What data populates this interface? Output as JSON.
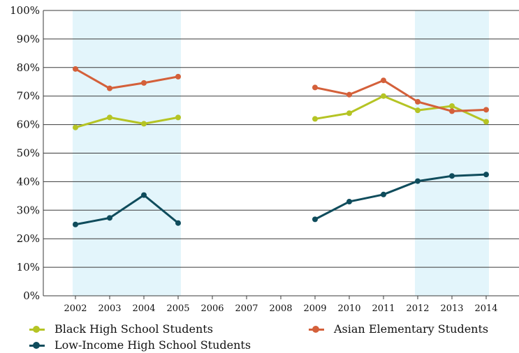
{
  "chart_data": {
    "type": "line",
    "x": [
      "2002",
      "2003",
      "2004",
      "2005",
      "2006",
      "2007",
      "2008",
      "2009",
      "2010",
      "2011",
      "2012",
      "2013",
      "2014"
    ],
    "yticks": [
      "0%",
      "10%",
      "20%",
      "30%",
      "40%",
      "50%",
      "60%",
      "70%",
      "80%",
      "90%",
      "100%"
    ],
    "ylim": [
      0,
      100
    ],
    "grid": true,
    "legend_position": "bottom",
    "shaded_ranges": [
      [
        "2002",
        "2005"
      ],
      [
        "2012",
        "2014"
      ]
    ],
    "shade_color": "#e3f5fb",
    "series": [
      {
        "name": "Black High School Students",
        "color": "#b5c424",
        "values": [
          59,
          62.5,
          60.3,
          62.5,
          null,
          null,
          null,
          62,
          64,
          70,
          65,
          66.5,
          61
        ]
      },
      {
        "name": "Asian Elementary Students",
        "color": "#d4603a",
        "values": [
          79.5,
          72.7,
          74.6,
          76.8,
          null,
          null,
          null,
          73,
          70.5,
          75.5,
          68,
          64.7,
          65.2
        ]
      },
      {
        "name": "Low-Income High School Students",
        "color": "#0f4c5c",
        "values": [
          25,
          27.3,
          35.3,
          25.5,
          null,
          null,
          null,
          26.8,
          33,
          35.5,
          40.2,
          42,
          42.5
        ]
      }
    ]
  }
}
